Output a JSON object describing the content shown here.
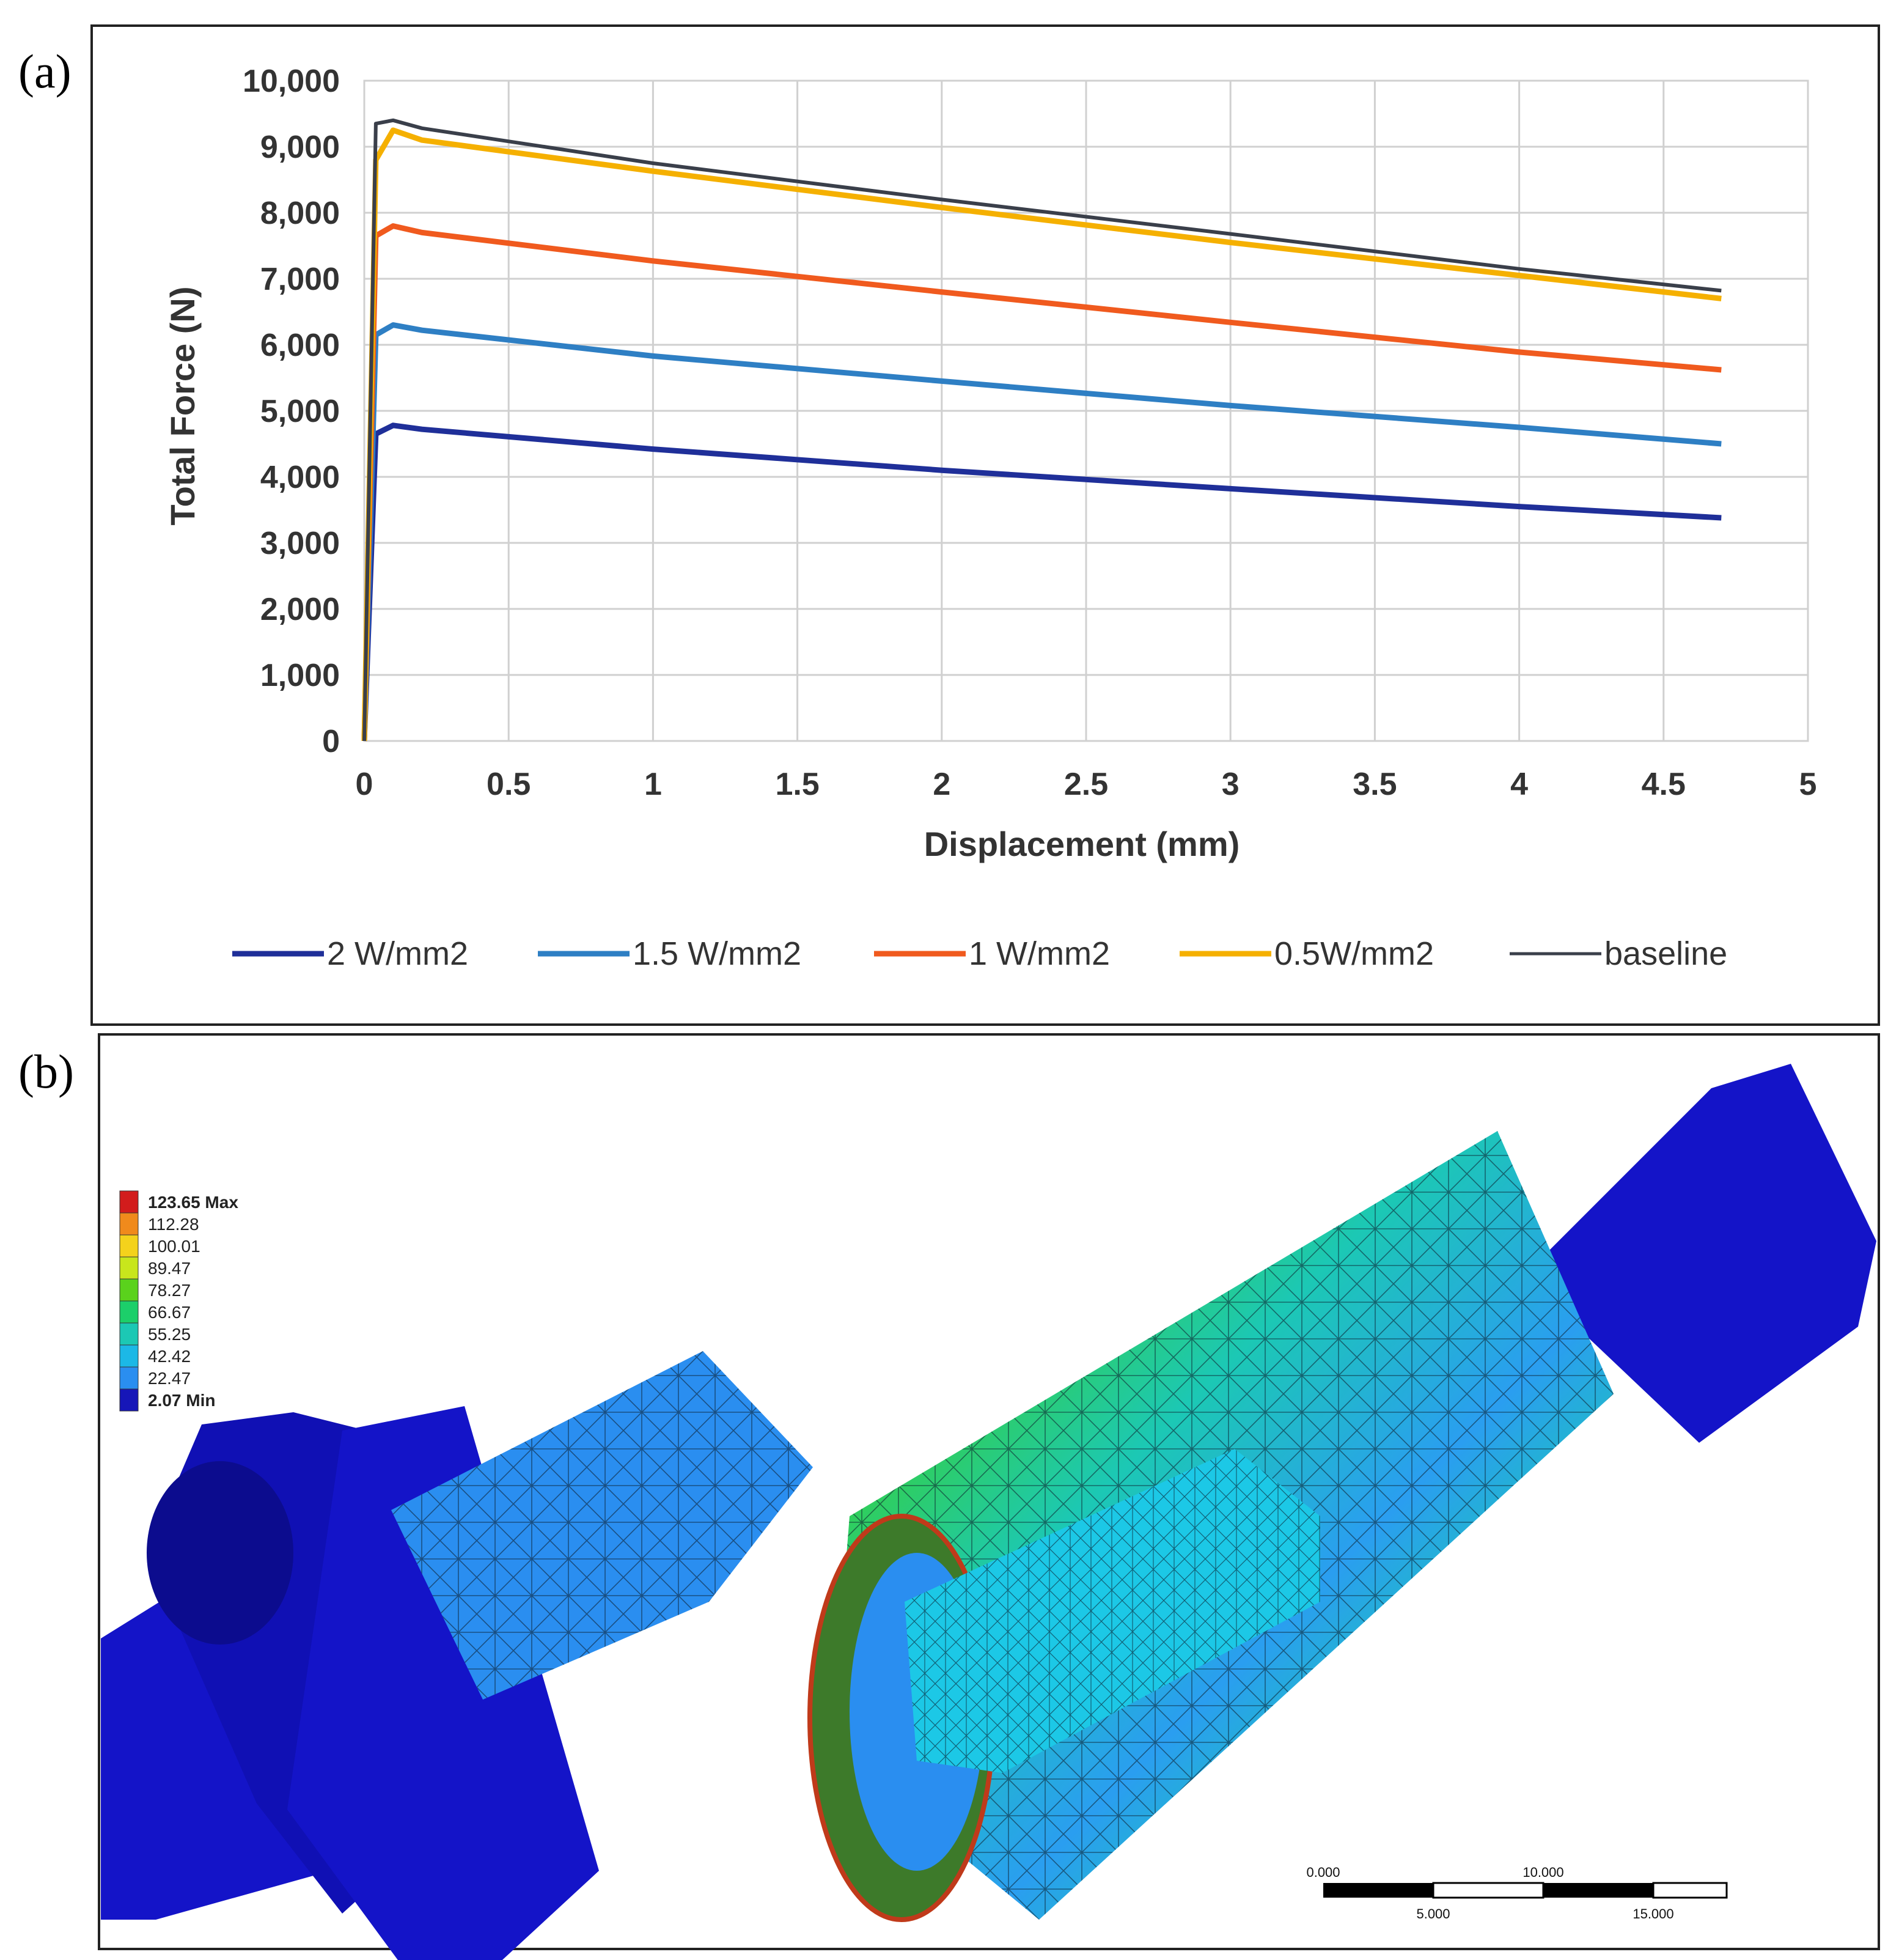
{
  "panel_a": {
    "label": "(a)",
    "chart_data": {
      "type": "line",
      "title": "",
      "xlabel": "Displacement (mm)",
      "ylabel": "Total Force (N)",
      "xlim": [
        0,
        5
      ],
      "ylim": [
        0,
        10000
      ],
      "x_ticks": [
        "0",
        "0.5",
        "1",
        "1.5",
        "2",
        "2.5",
        "3",
        "3.5",
        "4",
        "4.5",
        "5"
      ],
      "y_ticks": [
        "0",
        "1,000",
        "2,000",
        "3,000",
        "4,000",
        "5,000",
        "6,000",
        "7,000",
        "8,000",
        "9,000",
        "10,000"
      ],
      "grid": true,
      "legend_position": "bottom",
      "series": [
        {
          "name": "2 W/mm2",
          "color": "#1f2f99",
          "x": [
            0,
            0.04,
            0.1,
            0.2,
            1.0,
            2.0,
            3.0,
            4.0,
            4.7
          ],
          "y": [
            0,
            4650,
            4780,
            4720,
            4420,
            4100,
            3820,
            3550,
            3380
          ]
        },
        {
          "name": "1.5 W/mm2",
          "color": "#2e7fc4",
          "x": [
            0,
            0.04,
            0.1,
            0.2,
            1.0,
            2.0,
            3.0,
            4.0,
            4.7
          ],
          "y": [
            0,
            6150,
            6300,
            6220,
            5830,
            5450,
            5080,
            4750,
            4500
          ]
        },
        {
          "name": "1 W/mm2",
          "color": "#f05a1e",
          "x": [
            0,
            0.04,
            0.1,
            0.2,
            1.0,
            2.0,
            3.0,
            4.0,
            4.7
          ],
          "y": [
            0,
            7650,
            7800,
            7700,
            7270,
            6800,
            6340,
            5890,
            5620
          ]
        },
        {
          "name": "0.5W/mm2",
          "color": "#f5b000",
          "x": [
            0,
            0.04,
            0.1,
            0.2,
            1.0,
            2.0,
            3.0,
            4.0,
            4.7
          ],
          "y": [
            0,
            8800,
            9250,
            9100,
            8630,
            8080,
            7550,
            7050,
            6700
          ]
        },
        {
          "name": "baseline",
          "color": "#3a3f4a",
          "x": [
            0,
            0.04,
            0.1,
            0.2,
            1.0,
            2.0,
            3.0,
            4.0,
            4.7
          ],
          "y": [
            0,
            9350,
            9400,
            9280,
            8750,
            8200,
            7680,
            7150,
            6820
          ]
        }
      ]
    }
  },
  "panel_b": {
    "label": "(b)",
    "legend": {
      "values": [
        "123.65 Max",
        "112.28",
        "100.01",
        "89.47",
        "78.27",
        "66.67",
        "55.25",
        "42.42",
        "22.47",
        "2.07 Min"
      ],
      "colors": [
        "#d21c1c",
        "#f08a1c",
        "#f4d21c",
        "#c8e61c",
        "#5ad21c",
        "#1ccf6a",
        "#1cc8b4",
        "#1cb8e6",
        "#2a8ef0",
        "#1616b8"
      ]
    },
    "scale_bar": {
      "top_labels": [
        "0.000",
        "10.000"
      ],
      "bottom_labels": [
        "5.000",
        "15.000"
      ]
    }
  }
}
